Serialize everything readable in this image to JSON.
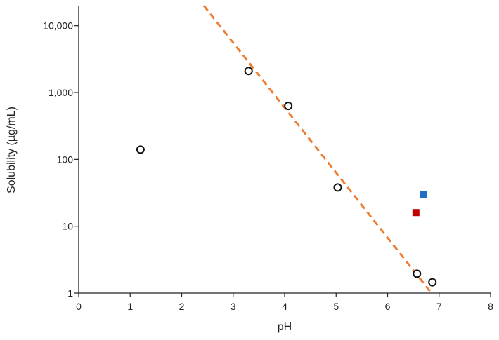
{
  "chart_data": {
    "type": "scatter",
    "title": "",
    "xlabel": "pH",
    "ylabel": "Solubility (µg/mL)",
    "xlim": [
      0,
      8
    ],
    "ylim": [
      1,
      20000
    ],
    "yscale": "log",
    "grid": false,
    "legend": "none",
    "x_ticks": [
      0,
      1,
      2,
      3,
      4,
      5,
      6,
      7,
      8
    ],
    "x_tick_labels": [
      "0",
      "1",
      "2",
      "3",
      "4",
      "5",
      "6",
      "7",
      "8"
    ],
    "y_ticks": [
      1,
      10,
      100,
      1000,
      10000
    ],
    "y_tick_labels": [
      "1",
      "10",
      "100",
      "1,000",
      "10,000"
    ],
    "series": [
      {
        "marker": "open-circle",
        "color": "#111111",
        "points": [
          {
            "x": 1.2,
            "y": 140
          },
          {
            "x": 3.3,
            "y": 2100
          },
          {
            "x": 4.07,
            "y": 630
          },
          {
            "x": 5.03,
            "y": 38
          },
          {
            "x": 6.57,
            "y": 1.95
          },
          {
            "x": 6.87,
            "y": 1.45
          }
        ]
      },
      {
        "marker": "square",
        "color": "#1f6fc4",
        "points": [
          {
            "x": 6.7,
            "y": 30
          }
        ]
      },
      {
        "marker": "square",
        "color": "#c00000",
        "points": [
          {
            "x": 6.55,
            "y": 16
          }
        ]
      }
    ],
    "trendline": {
      "style": "dashed",
      "color": "#ed7d31",
      "from": {
        "x": 2.43,
        "y": 20000
      },
      "to": {
        "x": 6.85,
        "y": 1
      }
    }
  }
}
